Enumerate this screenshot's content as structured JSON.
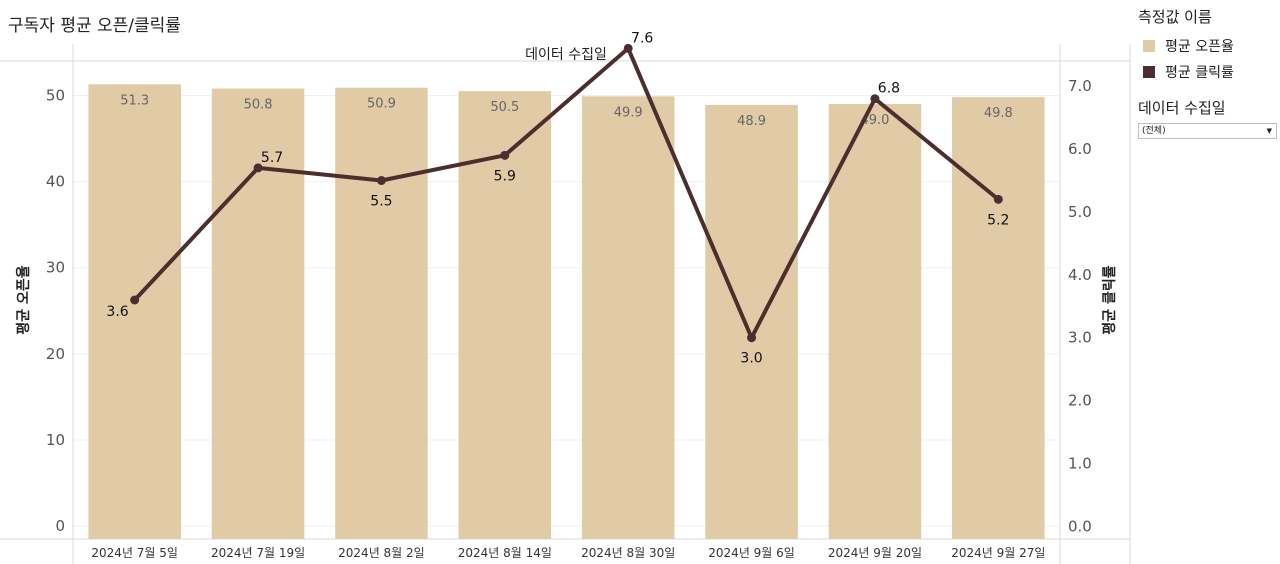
{
  "title": "구독자 평균 오픈/클릭률",
  "legend": {
    "title": "측정값 이름",
    "items": [
      {
        "label": "평균 오픈율",
        "color": "#e1cba6"
      },
      {
        "label": "평균 클릭률",
        "color": "#4d2e2e"
      }
    ]
  },
  "filter": {
    "title": "데이터 수집일",
    "selected": "(전체)",
    "icon": "chevron-down-icon"
  },
  "chart_data": {
    "type": "bar+line",
    "column_header": "데이터 수집일",
    "categories": [
      "2024년 7월 5일",
      "2024년 7월 19일",
      "2024년 8월 2일",
      "2024년 8월 14일",
      "2024년 8월 30일",
      "2024년 9월 6일",
      "2024년 9월 20일",
      "2024년 9월 27일"
    ],
    "series": [
      {
        "name": "평균 오픈율",
        "type": "bar",
        "axis": "left",
        "values": [
          51.3,
          50.8,
          50.9,
          50.5,
          49.9,
          48.9,
          49.0,
          49.8
        ],
        "color": "#e1cba6"
      },
      {
        "name": "평균 클릭률",
        "type": "line",
        "axis": "right",
        "values": [
          3.6,
          5.7,
          5.5,
          5.9,
          7.6,
          3.0,
          6.8,
          5.2
        ],
        "color": "#4d2e2e"
      }
    ],
    "ylabel_left": "평균 오픈율",
    "ylabel_right": "평균 클릭률",
    "left_ticks": [
      "0",
      "10",
      "20",
      "30",
      "40",
      "50"
    ],
    "right_ticks": [
      "0.0",
      "1.0",
      "2.0",
      "3.0",
      "4.0",
      "5.0",
      "6.0",
      "7.0"
    ],
    "ylim_left": [
      -1.5,
      54
    ],
    "ylim_right": [
      -0.2,
      7.4
    ],
    "grid": true
  }
}
